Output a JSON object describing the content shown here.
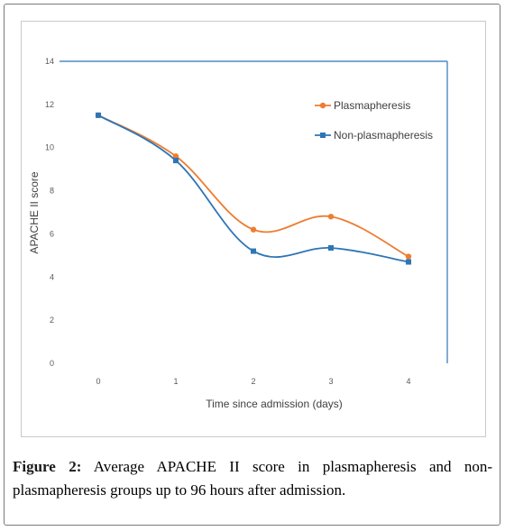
{
  "chart_data": {
    "type": "line",
    "title": "",
    "xlabel": "Time since admission (days)",
    "ylabel": "APACHE II score",
    "x": [
      0,
      1,
      2,
      3,
      4
    ],
    "xlim": [
      -0.5,
      4.5
    ],
    "ylim": [
      0,
      14
    ],
    "yticks": [
      0,
      2,
      4,
      6,
      8,
      10,
      12,
      14
    ],
    "grid": false,
    "legend_position": "top-right",
    "series": [
      {
        "name": "Plasmapheresis",
        "color": "#ed7d31",
        "marker": "circle",
        "values": [
          11.5,
          9.6,
          6.2,
          6.8,
          4.95
        ]
      },
      {
        "name": "Non-plasmapheresis",
        "color": "#2e75b6",
        "marker": "square",
        "values": [
          11.5,
          9.4,
          5.2,
          5.35,
          4.7
        ]
      }
    ]
  },
  "caption": {
    "label": "Figure 2:",
    "text": "Average APACHE II score in plasmapheresis and non-plasmapheresis groups up to 96 hours after admission."
  }
}
